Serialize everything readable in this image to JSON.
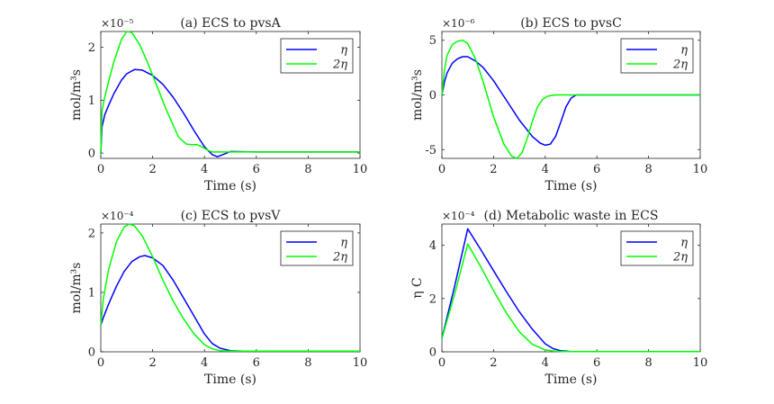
{
  "chart_data": [
    {
      "type": "line",
      "title": "(a) ECS to pvsA",
      "xlabel": "Time (s)",
      "ylabel": "mol/m³s",
      "y_exponent_label": "×10⁻⁵",
      "xlim": [
        0,
        10
      ],
      "ylim": [
        -0.1,
        2.3
      ],
      "xticks": [
        0,
        2,
        4,
        6,
        8,
        10
      ],
      "yticks": [
        0,
        1,
        2
      ],
      "legend_position": "top-right",
      "series": [
        {
          "name": "η",
          "color": "#0000ff",
          "x": [
            0,
            0.05,
            0.15,
            0.3,
            0.5,
            0.8,
            1.0,
            1.3,
            1.6,
            2.0,
            2.4,
            2.8,
            3.2,
            3.6,
            4.0,
            4.3,
            4.5,
            4.7,
            5.0,
            6,
            8,
            10
          ],
          "y": [
            0,
            0.5,
            0.72,
            0.9,
            1.12,
            1.38,
            1.5,
            1.58,
            1.57,
            1.47,
            1.3,
            1.05,
            0.75,
            0.42,
            0.12,
            -0.03,
            -0.07,
            -0.03,
            0.03,
            0.02,
            0.02,
            0.02
          ]
        },
        {
          "name": "2η",
          "color": "#00ff00",
          "x": [
            0,
            0.05,
            0.15,
            0.3,
            0.5,
            0.8,
            1.0,
            1.2,
            1.5,
            1.8,
            2.1,
            2.5,
            3.0,
            3.3,
            3.5,
            3.7,
            3.9,
            4.1,
            4.3,
            4.5,
            4.7,
            5.0,
            6,
            8,
            10
          ],
          "y": [
            0,
            0.8,
            1.05,
            1.35,
            1.72,
            2.15,
            2.3,
            2.28,
            2.05,
            1.72,
            1.35,
            0.85,
            0.3,
            0.17,
            0.16,
            0.16,
            0.12,
            0.06,
            0.02,
            0.02,
            0.02,
            0.02,
            0.02,
            0.02,
            0.02
          ]
        }
      ]
    },
    {
      "type": "line",
      "title": "(b) ECS to pvsC",
      "xlabel": "Time (s)",
      "ylabel": "mol/m³s",
      "y_exponent_label": "×10⁻⁶",
      "xlim": [
        0,
        10
      ],
      "ylim": [
        -5.8,
        5.8
      ],
      "xticks": [
        0,
        2,
        4,
        6,
        8,
        10
      ],
      "yticks": [
        -5,
        0,
        5
      ],
      "legend_position": "top-right",
      "series": [
        {
          "name": "η",
          "color": "#0000ff",
          "x": [
            0,
            0.1,
            0.2,
            0.4,
            0.6,
            0.8,
            1.0,
            1.3,
            1.6,
            2.0,
            2.5,
            3.0,
            3.5,
            3.8,
            4.0,
            4.2,
            4.4,
            4.6,
            4.8,
            5.0,
            5.2,
            5.5,
            10
          ],
          "y": [
            0,
            1.2,
            2.0,
            2.9,
            3.3,
            3.5,
            3.5,
            3.1,
            2.5,
            1.3,
            -0.5,
            -2.3,
            -3.8,
            -4.4,
            -4.6,
            -4.5,
            -3.8,
            -2.5,
            -1.1,
            -0.3,
            0,
            0,
            0
          ]
        },
        {
          "name": "2η",
          "color": "#00ff00",
          "x": [
            0,
            0.1,
            0.2,
            0.4,
            0.6,
            0.8,
            1.0,
            1.3,
            1.6,
            2.0,
            2.4,
            2.7,
            2.9,
            3.1,
            3.3,
            3.5,
            3.7,
            3.9,
            4.1,
            4.4,
            4.7,
            5.0,
            10
          ],
          "y": [
            0,
            2.3,
            3.6,
            4.6,
            4.9,
            5.0,
            4.7,
            3.3,
            1.2,
            -2.0,
            -4.5,
            -5.6,
            -5.8,
            -5.3,
            -4.0,
            -2.4,
            -1.1,
            -0.4,
            -0.1,
            0,
            0,
            0,
            0
          ]
        }
      ]
    },
    {
      "type": "line",
      "title": "(c) ECS to pvsV",
      "xlabel": "Time (s)",
      "ylabel": "mol/m³s",
      "y_exponent_label": "×10⁻⁴",
      "xlim": [
        0,
        10
      ],
      "ylim": [
        0,
        2.15
      ],
      "xticks": [
        0,
        2,
        4,
        6,
        8,
        10
      ],
      "yticks": [
        0,
        1,
        2
      ],
      "legend_position": "top-right",
      "series": [
        {
          "name": "η",
          "color": "#0000ff",
          "x": [
            0,
            0.1,
            0.3,
            0.6,
            0.9,
            1.2,
            1.5,
            1.7,
            2.0,
            2.4,
            2.8,
            3.2,
            3.6,
            4.0,
            4.3,
            4.6,
            5.0,
            5.5,
            6,
            8,
            10
          ],
          "y": [
            0.45,
            0.58,
            0.8,
            1.1,
            1.35,
            1.52,
            1.6,
            1.62,
            1.58,
            1.45,
            1.2,
            0.9,
            0.6,
            0.3,
            0.14,
            0.06,
            0.02,
            0.01,
            0.01,
            0.01,
            0.01
          ]
        },
        {
          "name": "2η",
          "color": "#00ff00",
          "x": [
            0,
            0.1,
            0.3,
            0.6,
            0.9,
            1.1,
            1.3,
            1.6,
            2.0,
            2.4,
            2.8,
            3.2,
            3.6,
            4.0,
            4.3,
            4.6,
            5.0,
            6,
            8,
            10
          ],
          "y": [
            0.45,
            0.9,
            1.38,
            1.85,
            2.1,
            2.15,
            2.12,
            1.95,
            1.6,
            1.2,
            0.85,
            0.55,
            0.3,
            0.12,
            0.05,
            0.02,
            0.01,
            0.01,
            0.01,
            0.01
          ]
        }
      ]
    },
    {
      "type": "line",
      "title": "(d) Metabolic waste in ECS",
      "xlabel": "Time (s)",
      "ylabel": "η C",
      "y_exponent_label": "×10⁻⁴",
      "xlim": [
        0,
        10
      ],
      "ylim": [
        0,
        4.8
      ],
      "xticks": [
        0,
        2,
        4,
        6,
        8,
        10
      ],
      "yticks": [
        0,
        2,
        4
      ],
      "legend_position": "top-right",
      "series": [
        {
          "name": "η",
          "color": "#0000ff",
          "x": [
            0,
            0.5,
            1.0,
            1.5,
            2.0,
            2.5,
            3.0,
            3.5,
            4.0,
            4.3,
            4.6,
            5.0,
            6,
            8,
            10
          ],
          "y": [
            0.5,
            2.5,
            4.62,
            3.85,
            3.05,
            2.25,
            1.5,
            0.85,
            0.3,
            0.12,
            0.04,
            0.01,
            0.01,
            0.01,
            0.01
          ]
        },
        {
          "name": "2η",
          "color": "#00ff00",
          "x": [
            0,
            0.5,
            1.0,
            1.5,
            2.0,
            2.5,
            3.0,
            3.5,
            4.0,
            4.4,
            4.8,
            6,
            8,
            10
          ],
          "y": [
            0.5,
            2.2,
            4.05,
            3.2,
            2.3,
            1.45,
            0.75,
            0.28,
            0.07,
            0.02,
            0.01,
            0.01,
            0.01,
            0.01
          ]
        }
      ]
    }
  ]
}
